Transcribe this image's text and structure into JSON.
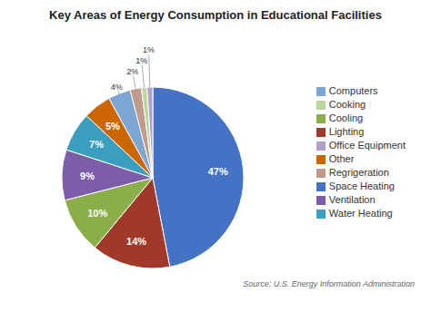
{
  "chart_data": {
    "type": "pie",
    "title": "Key Areas of Energy Consumption in Educational Facilities",
    "annotations": [
      "Source: U.S. Energy Information Administration"
    ],
    "categories": [
      "Space Heating",
      "Lighting",
      "Cooling",
      "Ventilation",
      "Water Heating",
      "Other",
      "Computers",
      "Regrigeration",
      "Cooking",
      "Office Equipment"
    ],
    "values": [
      47,
      14,
      10,
      9,
      7,
      5,
      4,
      2,
      1,
      1
    ],
    "colors": [
      "#4472C4",
      "#A0392A",
      "#8AAE4A",
      "#7B5EA7",
      "#3A9EBF",
      "#CC6600",
      "#7EA6D4",
      "#C09A8A",
      "#B8D8A0",
      "#B0A0C8"
    ],
    "data_labels": true,
    "legend": "right"
  }
}
